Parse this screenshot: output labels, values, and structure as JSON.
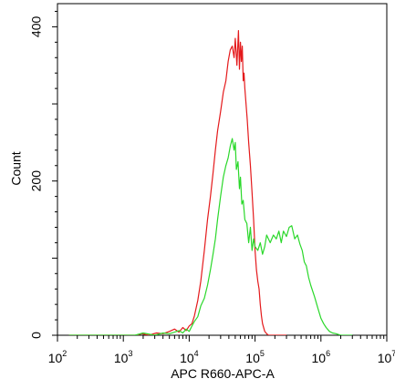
{
  "chart_data": {
    "type": "line",
    "title": "",
    "xlabel": "APC R660-APC-A",
    "ylabel": "Count",
    "x_scale": "log",
    "xlim": [
      100,
      10000000
    ],
    "ylim": [
      0,
      430
    ],
    "grid": false,
    "legend": "none",
    "x_ticks": [
      {
        "base": "10",
        "exp": "2",
        "value": 100
      },
      {
        "base": "10",
        "exp": "3",
        "value": 1000
      },
      {
        "base": "10",
        "exp": "4",
        "value": 10000
      },
      {
        "base": "10",
        "exp": "5",
        "value": 100000
      },
      {
        "base": "10",
        "exp": "6",
        "value": 1000000
      },
      {
        "base": "10",
        "exp": "7",
        "value": 10000000
      }
    ],
    "y_ticks": [
      {
        "label": "0",
        "value": 0
      },
      {
        "label": "200",
        "value": 200
      },
      {
        "label": "400",
        "value": 400
      }
    ],
    "series": [
      {
        "color": "#e41a1c",
        "x": [
          150,
          1600,
          1900,
          2400,
          3200,
          4000,
          5000,
          6000,
          7000,
          8000,
          9000,
          10000,
          11000,
          12000,
          13500,
          15000,
          17000,
          19000,
          21000,
          23000,
          25000,
          27000,
          30000,
          33000,
          36000,
          39000,
          42000,
          45000,
          48000,
          50000,
          53000,
          56000,
          58000,
          60000,
          62000,
          64000,
          66000,
          68000,
          70000,
          73000,
          76000,
          80000,
          85000,
          90000,
          95000,
          100000,
          105000,
          110000,
          115000,
          120000,
          125000,
          130000,
          140000,
          150000,
          160000,
          200000,
          300000
        ],
        "y": [
          0,
          0,
          2,
          0,
          3,
          2,
          5,
          8,
          4,
          10,
          6,
          12,
          15,
          25,
          45,
          70,
          110,
          150,
          180,
          210,
          240,
          265,
          290,
          315,
          330,
          355,
          370,
          375,
          360,
          385,
          350,
          395,
          345,
          380,
          355,
          375,
          330,
          340,
          320,
          300,
          280,
          250,
          220,
          185,
          150,
          110,
          85,
          70,
          60,
          40,
          25,
          15,
          5,
          2,
          0,
          0,
          0
        ]
      },
      {
        "color": "#2bd82b",
        "x": [
          150,
          1500,
          2000,
          3000,
          4000,
          5000,
          6000,
          7000,
          8000,
          9000,
          10000,
          11000,
          12000,
          13500,
          15000,
          17000,
          19000,
          21000,
          23000,
          25000,
          27000,
          30000,
          33000,
          36000,
          39000,
          42000,
          45000,
          48000,
          50000,
          52000,
          55000,
          58000,
          60000,
          63000,
          66000,
          70000,
          75000,
          80000,
          85000,
          90000,
          95000,
          100000,
          110000,
          120000,
          130000,
          140000,
          150000,
          170000,
          190000,
          210000,
          230000,
          250000,
          270000,
          300000,
          330000,
          360000,
          400000,
          440000,
          480000,
          520000,
          560000,
          600000,
          650000,
          700000,
          800000,
          900000,
          1000000,
          1100000,
          1200000,
          1350000,
          1500000,
          1700000,
          2000000,
          3000000
        ],
        "y": [
          0,
          0,
          3,
          0,
          3,
          2,
          4,
          6,
          3,
          8,
          5,
          12,
          18,
          24,
          38,
          48,
          65,
          85,
          105,
          125,
          150,
          180,
          205,
          220,
          230,
          245,
          255,
          240,
          250,
          215,
          225,
          190,
          205,
          170,
          175,
          150,
          145,
          120,
          140,
          110,
          125,
          115,
          110,
          120,
          105,
          115,
          130,
          120,
          130,
          125,
          135,
          120,
          135,
          128,
          140,
          142,
          125,
          130,
          118,
          110,
          95,
          90,
          75,
          65,
          50,
          35,
          22,
          15,
          10,
          5,
          3,
          2,
          0,
          0
        ]
      }
    ]
  }
}
